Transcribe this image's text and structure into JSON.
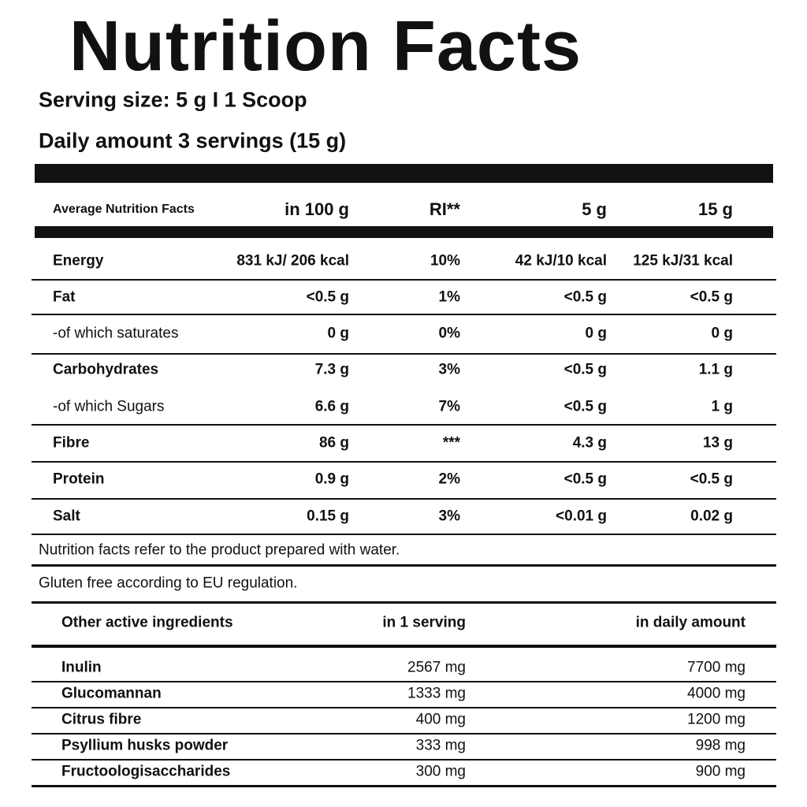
{
  "title": "Nutrition Facts",
  "serving_size": "Serving size: 5 g I 1 Scoop",
  "daily_amount": "Daily amount 3 servings (15 g)",
  "table": {
    "header": [
      "Average Nutrition Facts",
      "in 100 g",
      "RI**",
      "5 g",
      "15 g"
    ],
    "rows": [
      [
        "Energy",
        "831 kJ/ 206 kcal",
        "10%",
        "42 kJ/10 kcal",
        "125 kJ/31 kcal"
      ],
      [
        "Fat",
        "<0.5 g",
        "1%",
        "<0.5 g",
        "<0.5 g"
      ],
      [
        "-of which saturates",
        "0 g",
        "0%",
        "0 g",
        "0 g"
      ],
      [
        "Carbohydrates",
        "7.3 g",
        "3%",
        "<0.5 g",
        "1.1 g"
      ],
      [
        "-of which Sugars",
        "6.6 g",
        "7%",
        "<0.5 g",
        "1 g"
      ],
      [
        "Fibre",
        "86 g",
        "***",
        "4.3 g",
        "13 g"
      ],
      [
        "Protein",
        "0.9 g",
        "2%",
        "<0.5 g",
        "<0.5 g"
      ],
      [
        "Salt",
        "0.15 g",
        "3%",
        "<0.01 g",
        "0.02 g"
      ]
    ]
  },
  "notes": [
    "Nutrition facts refer to the product prepared with water.",
    "Gluten free according to EU regulation."
  ],
  "ingredients": {
    "header": [
      "Other active ingredients",
      "in 1 serving",
      "in daily amount"
    ],
    "rows": [
      [
        "Inulin",
        "2567 mg",
        "7700 mg"
      ],
      [
        "Glucomannan",
        "1333 mg",
        "4000 mg"
      ],
      [
        "Citrus fibre",
        "400 mg",
        "1200 mg"
      ],
      [
        "Psyllium husks powder",
        "333 mg",
        "998 mg"
      ],
      [
        "Fructoologisaccharides",
        "300 mg",
        "900 mg"
      ]
    ]
  }
}
